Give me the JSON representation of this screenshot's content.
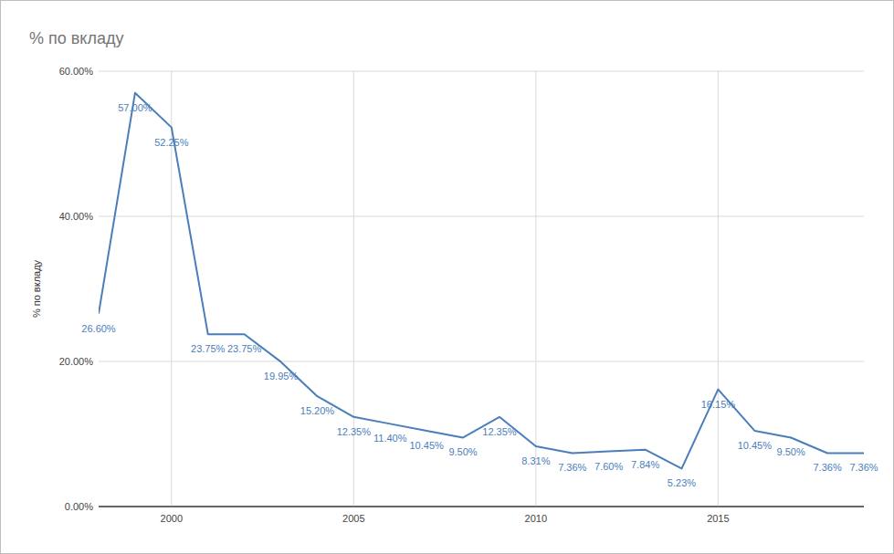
{
  "chart_data": {
    "type": "line",
    "title": "% по вкладу",
    "y_label": "% по вкладу",
    "x": [
      1998,
      1999,
      2000,
      2001,
      2002,
      2003,
      2004,
      2005,
      2006,
      2007,
      2008,
      2009,
      2010,
      2011,
      2012,
      2013,
      2014,
      2015,
      2016,
      2017,
      2018,
      2019
    ],
    "values": [
      26.6,
      57.0,
      52.25,
      23.75,
      23.75,
      19.95,
      15.2,
      12.35,
      11.4,
      10.45,
      9.5,
      12.35,
      8.31,
      7.36,
      7.6,
      7.84,
      5.23,
      16.15,
      10.45,
      9.5,
      7.36,
      7.36
    ],
    "value_labels": [
      "26.60%",
      "57.00%",
      "52.25%",
      "23.75%",
      "23.75%",
      "19.95%",
      "15.20%",
      "12.35%",
      "11.40%",
      "10.45%",
      "9.50%",
      "12.35%",
      "8.31%",
      "7.36%",
      "7.60%",
      "7.84%",
      "5.23%",
      "16.15%",
      "10.45%",
      "9.50%",
      "7.36%",
      "7.36%"
    ],
    "color": "#4a7ebb",
    "xlim": [
      1998,
      2019
    ],
    "xticks": [
      2000,
      2005,
      2010,
      2015
    ],
    "ylim": [
      0,
      60
    ],
    "yticks": [
      {
        "value": 0,
        "label": "0.00%"
      },
      {
        "value": 20,
        "label": "20.00%"
      },
      {
        "value": 40,
        "label": "40.00%"
      },
      {
        "value": 60,
        "label": "60.00%"
      }
    ],
    "grid": true,
    "data_labels": true
  }
}
